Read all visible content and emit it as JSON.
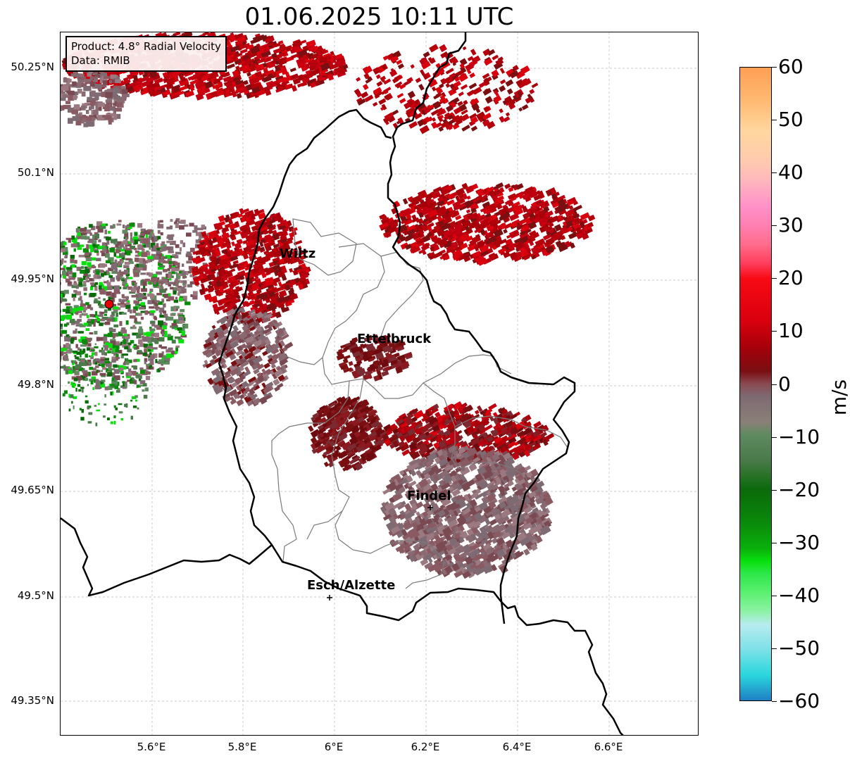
{
  "title": "01.06.2025 10:11 UTC",
  "info": {
    "product": "Product: 4.8° Radial Velocity",
    "data": "Data: RMIB"
  },
  "lat_ticks": [
    "50.25°N",
    "50.1°N",
    "49.95°N",
    "49.8°N",
    "49.65°N",
    "49.5°N",
    "49.35°N"
  ],
  "lon_ticks": [
    "5.6°E",
    "5.8°E",
    "6°E",
    "6.2°E",
    "6.4°E",
    "6.6°E"
  ],
  "cities": [
    {
      "name": "Wiltz"
    },
    {
      "name": "Ettelbruck"
    },
    {
      "name": "Findel"
    },
    {
      "name": "Esch/Alzette"
    }
  ],
  "colorbar": {
    "label": "m/s",
    "ticks": [
      "60",
      "50",
      "40",
      "30",
      "20",
      "10",
      "0",
      "−10",
      "−20",
      "−30",
      "−40",
      "−50",
      "−60"
    ],
    "vmin": -60,
    "vmax": 60,
    "colors": {
      "deep_blue": "#1f7fc4",
      "cyan": "#2ad6dc",
      "light_cyan": "#b7ecef",
      "light_green": "#8ef2a8",
      "green": "#08e00e",
      "dark_green": "#0a6a0a",
      "gray_green": "#5f8a60",
      "gray": "#7e6a72",
      "maroon": "#7a0f12",
      "red": "#d9000e",
      "bright_red": "#f70a14",
      "pink": "#ff6b8a",
      "light_pink": "#ffb5bd",
      "peach": "#ffd79e",
      "orange": "#ff9f55"
    }
  },
  "radar_marker_color": "#e10000"
}
